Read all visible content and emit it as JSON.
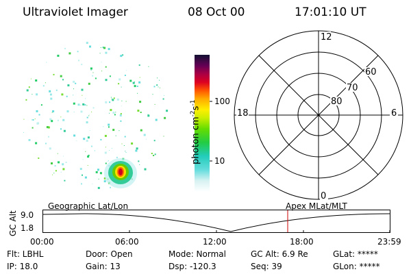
{
  "header": {
    "instrument": "Ultraviolet Imager",
    "date": "08 Oct 00",
    "time": "17:01:10 UT"
  },
  "colorbar": {
    "label": "photon cm",
    "exp1": "-2",
    "unit2": "s",
    "exp2": "-1",
    "ticks": [
      "100",
      "10"
    ]
  },
  "polar": {
    "mlt": {
      "top": "12",
      "left": "18",
      "right": "6",
      "bottom": "0"
    },
    "lat": [
      "60",
      "70",
      "80"
    ]
  },
  "timeline": {
    "ylabel": "GC Alt",
    "yticks": [
      "9.0",
      "1.8"
    ],
    "left_label": "Geographic Lat/Lon",
    "right_label": "Apex MLat/MLT",
    "xticks": [
      "00:00",
      "06:00",
      "12:00",
      "18:00",
      "23:59"
    ],
    "marker_color": "#cc0000"
  },
  "info": {
    "row1": [
      "Flt: LBHL",
      "Door: Open",
      "Mode: Normal",
      "GC Alt: 6.9 Re",
      "GLat: *****"
    ],
    "row2": [
      "IP: 18.0",
      "Gain: 13",
      "Dsp: -120.3",
      "Seq: 39",
      "GLon: *****"
    ]
  }
}
